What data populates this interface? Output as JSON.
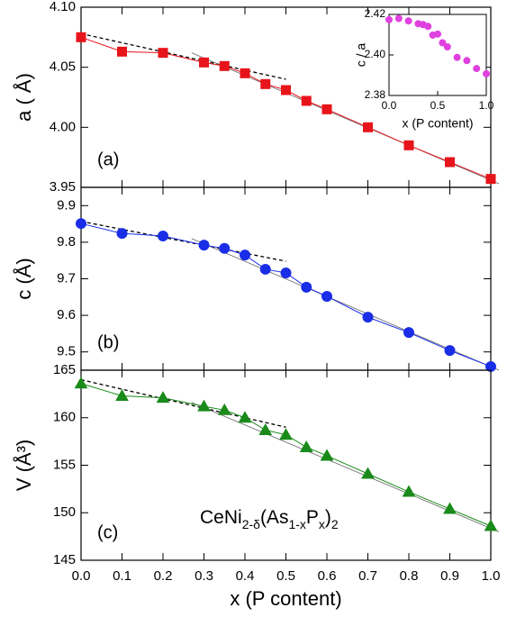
{
  "chart_data": [
    {
      "type": "line",
      "panel_label": "(a)",
      "ylabel": "a ( Å)",
      "marker": "square",
      "color": "#e8141b",
      "x": [
        0,
        0.1,
        0.2,
        0.3,
        0.35,
        0.4,
        0.45,
        0.5,
        0.55,
        0.6,
        0.7,
        0.8,
        0.9,
        1.0
      ],
      "values": [
        4.075,
        4.063,
        4.062,
        4.054,
        4.051,
        4.045,
        4.036,
        4.031,
        4.022,
        4.015,
        4.0,
        3.985,
        3.971,
        3.957
      ],
      "xlim": [
        0,
        1
      ],
      "ylim": [
        3.95,
        4.1
      ],
      "yticks": [
        3.95,
        {
          "value": 4,
          "label": "4.00"
        },
        4.05,
        {
          "value": 4.1,
          "label": "4.10"
        }
      ],
      "fits": [
        {
          "x": [
            0,
            0.5
          ],
          "y": [
            4.078,
            4.04
          ],
          "dashed": true
        },
        {
          "x": [
            0.27,
            1.02
          ],
          "y": [
            4.062,
            3.953
          ],
          "dashed": false
        }
      ]
    },
    {
      "type": "line",
      "panel_label": "(b)",
      "ylabel": "c (Å)",
      "marker": "circle",
      "color": "#1a2ee8",
      "x": [
        0,
        0.1,
        0.2,
        0.3,
        0.35,
        0.4,
        0.45,
        0.5,
        0.55,
        0.6,
        0.7,
        0.8,
        0.9,
        1.0
      ],
      "values": [
        9.851,
        9.824,
        9.817,
        9.792,
        9.783,
        9.765,
        9.726,
        9.716,
        9.677,
        9.652,
        9.595,
        9.553,
        9.504,
        9.46
      ],
      "xlim": [
        0,
        1
      ],
      "ylim": [
        9.45,
        9.95
      ],
      "yticks": [
        9.5,
        9.6,
        9.7,
        9.8,
        9.9
      ],
      "fits": [
        {
          "x": [
            0,
            0.5
          ],
          "y": [
            9.857,
            9.748
          ],
          "dashed": true
        },
        {
          "x": [
            0.27,
            1.02
          ],
          "y": [
            9.81,
            9.45
          ],
          "dashed": false
        }
      ]
    },
    {
      "type": "line",
      "panel_label": "(c)",
      "ylabel": "V (Å³)",
      "marker": "triangle",
      "color": "#1a8a1a",
      "xlabel": "x (P content)",
      "formula": [
        {
          "text": "CeNi"
        },
        {
          "text": "2-δ",
          "sub": true
        },
        {
          "text": "(As"
        },
        {
          "text": "1-x",
          "sub": true
        },
        {
          "text": "P"
        },
        {
          "text": "x",
          "sub": true
        },
        {
          "text": ")"
        },
        {
          "text": "2",
          "sub": true
        }
      ],
      "x": [
        0,
        0.1,
        0.2,
        0.3,
        0.35,
        0.4,
        0.45,
        0.5,
        0.55,
        0.6,
        0.7,
        0.8,
        0.9,
        1.0
      ],
      "values": [
        163.6,
        162.3,
        162.1,
        161.2,
        160.8,
        160.0,
        158.7,
        158.2,
        156.9,
        156.0,
        154.1,
        152.2,
        150.4,
        148.6
      ],
      "xlim": [
        0,
        1
      ],
      "ylim": [
        145,
        165
      ],
      "xticks": [
        {
          "value": 0,
          "label": "0.0"
        },
        0.1,
        0.2,
        0.3,
        0.4,
        0.5,
        0.6,
        0.7,
        0.8,
        0.9,
        {
          "value": 1,
          "label": "1.0"
        }
      ],
      "yticks": [
        145,
        150,
        155,
        160,
        165
      ],
      "fits": [
        {
          "x": [
            0,
            0.5
          ],
          "y": [
            164.0,
            159.0
          ],
          "dashed": true
        },
        {
          "x": [
            0.27,
            1.02
          ],
          "y": [
            161.6,
            148.0
          ],
          "dashed": false
        }
      ]
    },
    {
      "type": "scatter",
      "ylabel": "c / a",
      "xlabel": "x (P content)",
      "color": "#e040e0",
      "x": [
        0,
        0.1,
        0.2,
        0.3,
        0.35,
        0.4,
        0.45,
        0.5,
        0.55,
        0.6,
        0.7,
        0.8,
        0.9,
        1.0
      ],
      "values": [
        2.4174,
        2.418,
        2.4168,
        2.4154,
        2.415,
        2.4141,
        2.4098,
        2.4103,
        2.406,
        2.404,
        2.3988,
        2.3972,
        2.3933,
        2.3907
      ],
      "xlim": [
        0,
        1
      ],
      "ylim": [
        2.38,
        2.42
      ],
      "xticks": [
        {
          "value": 0,
          "label": "0.0"
        },
        0.5,
        {
          "value": 1,
          "label": "1.0"
        }
      ],
      "yticks": [
        2.38,
        {
          "value": 2.4,
          "label": "2.40"
        },
        2.42
      ]
    }
  ]
}
